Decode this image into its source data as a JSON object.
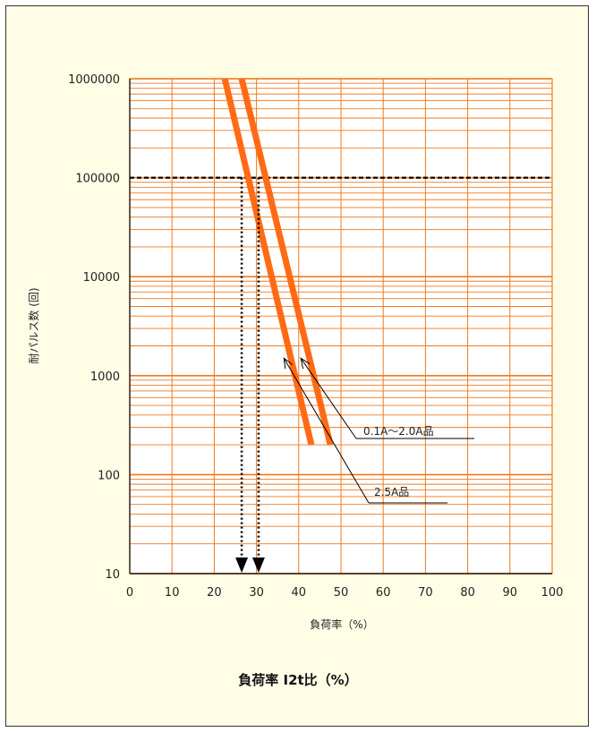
{
  "chart_data": {
    "type": "line",
    "xlabel": "負荷率（%）",
    "ylabel": "耐パルス数 (回)",
    "caption": "負荷率 I2t比（%）",
    "xlim": [
      0,
      100
    ],
    "ylim": [
      10,
      1000000
    ],
    "yscale": "log",
    "x_ticks": [
      "0",
      "10",
      "20",
      "30",
      "40",
      "50",
      "60",
      "70",
      "80",
      "90",
      "100"
    ],
    "y_ticks": [
      "10",
      "100",
      "1000",
      "10000",
      "100000",
      "1000000"
    ],
    "grid": true,
    "reference_pulses": 100000,
    "series": [
      {
        "name": "2.5A品",
        "x": [
          22.5,
          43
        ],
        "y": [
          1000000,
          200
        ]
      },
      {
        "name": "0.1A～2.0A品",
        "x": [
          26.5,
          47.5
        ],
        "y": [
          1000000,
          200
        ]
      }
    ],
    "readouts": [
      {
        "series": "2.5A品",
        "x": 26.5
      },
      {
        "series": "0.1A～2.0A品",
        "x": 30.5
      }
    ],
    "annotations": [
      {
        "text": "0.1A～2.0A品",
        "points_to": [
          40.5,
          1500
        ]
      },
      {
        "text": "2.5A品",
        "points_to": [
          36.5,
          1500
        ]
      }
    ],
    "colors": {
      "curve": "#ff6a14",
      "grid": "#f07a1e",
      "reference": "#000000"
    }
  }
}
